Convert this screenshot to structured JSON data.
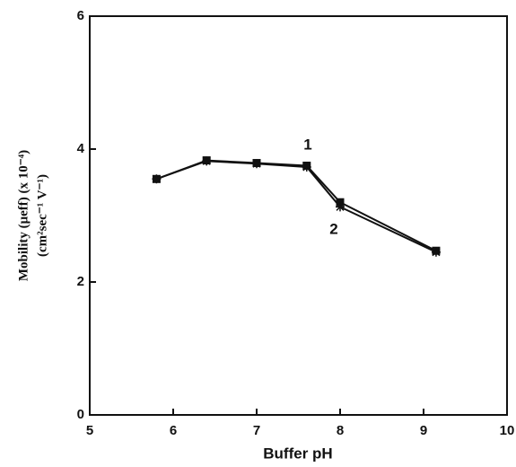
{
  "chart_data": {
    "type": "line",
    "xlabel": "Buffer pH",
    "ylabel": [
      "Mobility (μeff) (x 10⁻⁴)",
      "(cm²sec⁻¹ V⁻¹)"
    ],
    "x": [
      5.8,
      6.4,
      7.0,
      7.6,
      8.0,
      9.15
    ],
    "series": [
      {
        "name": "1",
        "color": "#111111",
        "marker": "square",
        "values": [
          3.55,
          3.83,
          3.79,
          3.75,
          3.2,
          2.47
        ]
      },
      {
        "name": "2",
        "color": "#111111",
        "marker": "star",
        "values": [
          3.55,
          3.82,
          3.78,
          3.73,
          3.13,
          2.45
        ]
      }
    ],
    "xlim": [
      5,
      10
    ],
    "xticks": [
      5,
      6,
      7,
      8,
      9,
      10
    ],
    "ylim": [
      0,
      6
    ],
    "yticks": [
      0,
      2,
      4,
      6
    ],
    "grid": false
  }
}
